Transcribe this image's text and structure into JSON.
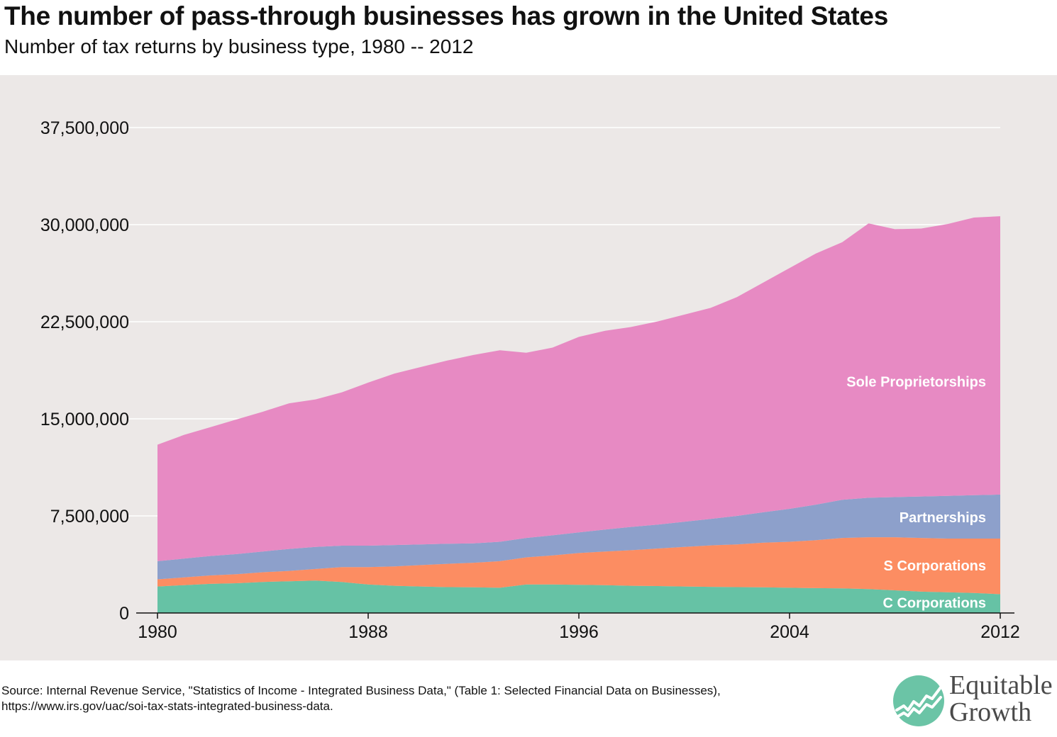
{
  "title": "The number of pass-through businesses has grown in the United States",
  "subtitle": "Number of tax returns by business type, 1980 -- 2012",
  "source": {
    "line1": "Source: Internal Revenue Service, \"Statistics of Income - Integrated Business Data,\" (Table 1: Selected Financial Data on Businesses),",
    "line2": "https://www.irs.gov/uac/soi-tax-stats-integrated-business-data."
  },
  "brand": {
    "line1": "Equitable",
    "line2": "Growth",
    "color": "#6bc4a6"
  },
  "chart_data": {
    "type": "area",
    "stacked": true,
    "x": [
      1980,
      1981,
      1982,
      1983,
      1984,
      1985,
      1986,
      1987,
      1988,
      1989,
      1990,
      1991,
      1992,
      1993,
      1994,
      1995,
      1996,
      1997,
      1998,
      1999,
      2000,
      2001,
      2002,
      2003,
      2004,
      2005,
      2006,
      2007,
      2008,
      2009,
      2010,
      2011,
      2012
    ],
    "x_ticks": [
      1980,
      1988,
      1996,
      2004,
      2012
    ],
    "x_tick_labels": [
      "1980",
      "1988",
      "1996",
      "2004",
      "2012"
    ],
    "ylim": [
      0,
      37500000
    ],
    "y_ticks": [
      0,
      7500000,
      15000000,
      22500000,
      30000000,
      37500000
    ],
    "y_tick_labels": [
      "0",
      "7,500,000",
      "15,000,000",
      "22,500,000",
      "30,000,000",
      "37,500,000"
    ],
    "grid": true,
    "background": "#ece8e7",
    "series": [
      {
        "name": "C Corporations",
        "color": "#66c2a5",
        "values": [
          2050000,
          2150000,
          2250000,
          2300000,
          2400000,
          2450000,
          2500000,
          2400000,
          2200000,
          2100000,
          2050000,
          2000000,
          1980000,
          1950000,
          2200000,
          2200000,
          2180000,
          2150000,
          2100000,
          2080000,
          2050000,
          2020000,
          2000000,
          1980000,
          1950000,
          1920000,
          1900000,
          1850000,
          1750000,
          1650000,
          1600000,
          1550000,
          1450000
        ]
      },
      {
        "name": "S Corporations",
        "color": "#fc8d62",
        "values": [
          550000,
          600000,
          650000,
          700000,
          750000,
          800000,
          900000,
          1150000,
          1350000,
          1500000,
          1650000,
          1800000,
          1900000,
          2050000,
          2100000,
          2250000,
          2450000,
          2600000,
          2750000,
          2900000,
          3050000,
          3200000,
          3300000,
          3450000,
          3550000,
          3700000,
          3900000,
          4000000,
          4100000,
          4150000,
          4150000,
          4200000,
          4300000
        ]
      },
      {
        "name": "Partnerships",
        "color": "#8da0cb",
        "values": [
          1400000,
          1450000,
          1500000,
          1550000,
          1600000,
          1700000,
          1700000,
          1650000,
          1650000,
          1650000,
          1600000,
          1550000,
          1500000,
          1500000,
          1500000,
          1550000,
          1600000,
          1700000,
          1800000,
          1850000,
          1950000,
          2050000,
          2200000,
          2350000,
          2550000,
          2750000,
          2950000,
          3050000,
          3100000,
          3200000,
          3300000,
          3350000,
          3400000
        ]
      },
      {
        "name": "Sole Proprietorships",
        "color": "#e78ac3",
        "values": [
          9000000,
          9550000,
          9950000,
          10400000,
          10800000,
          11250000,
          11400000,
          11850000,
          12600000,
          13250000,
          13700000,
          14150000,
          14550000,
          14800000,
          14300000,
          14500000,
          15100000,
          15350000,
          15450000,
          15700000,
          16000000,
          16300000,
          16900000,
          17750000,
          18600000,
          19400000,
          19900000,
          21200000,
          20700000,
          20700000,
          21000000,
          21450000,
          21500000
        ]
      }
    ]
  }
}
